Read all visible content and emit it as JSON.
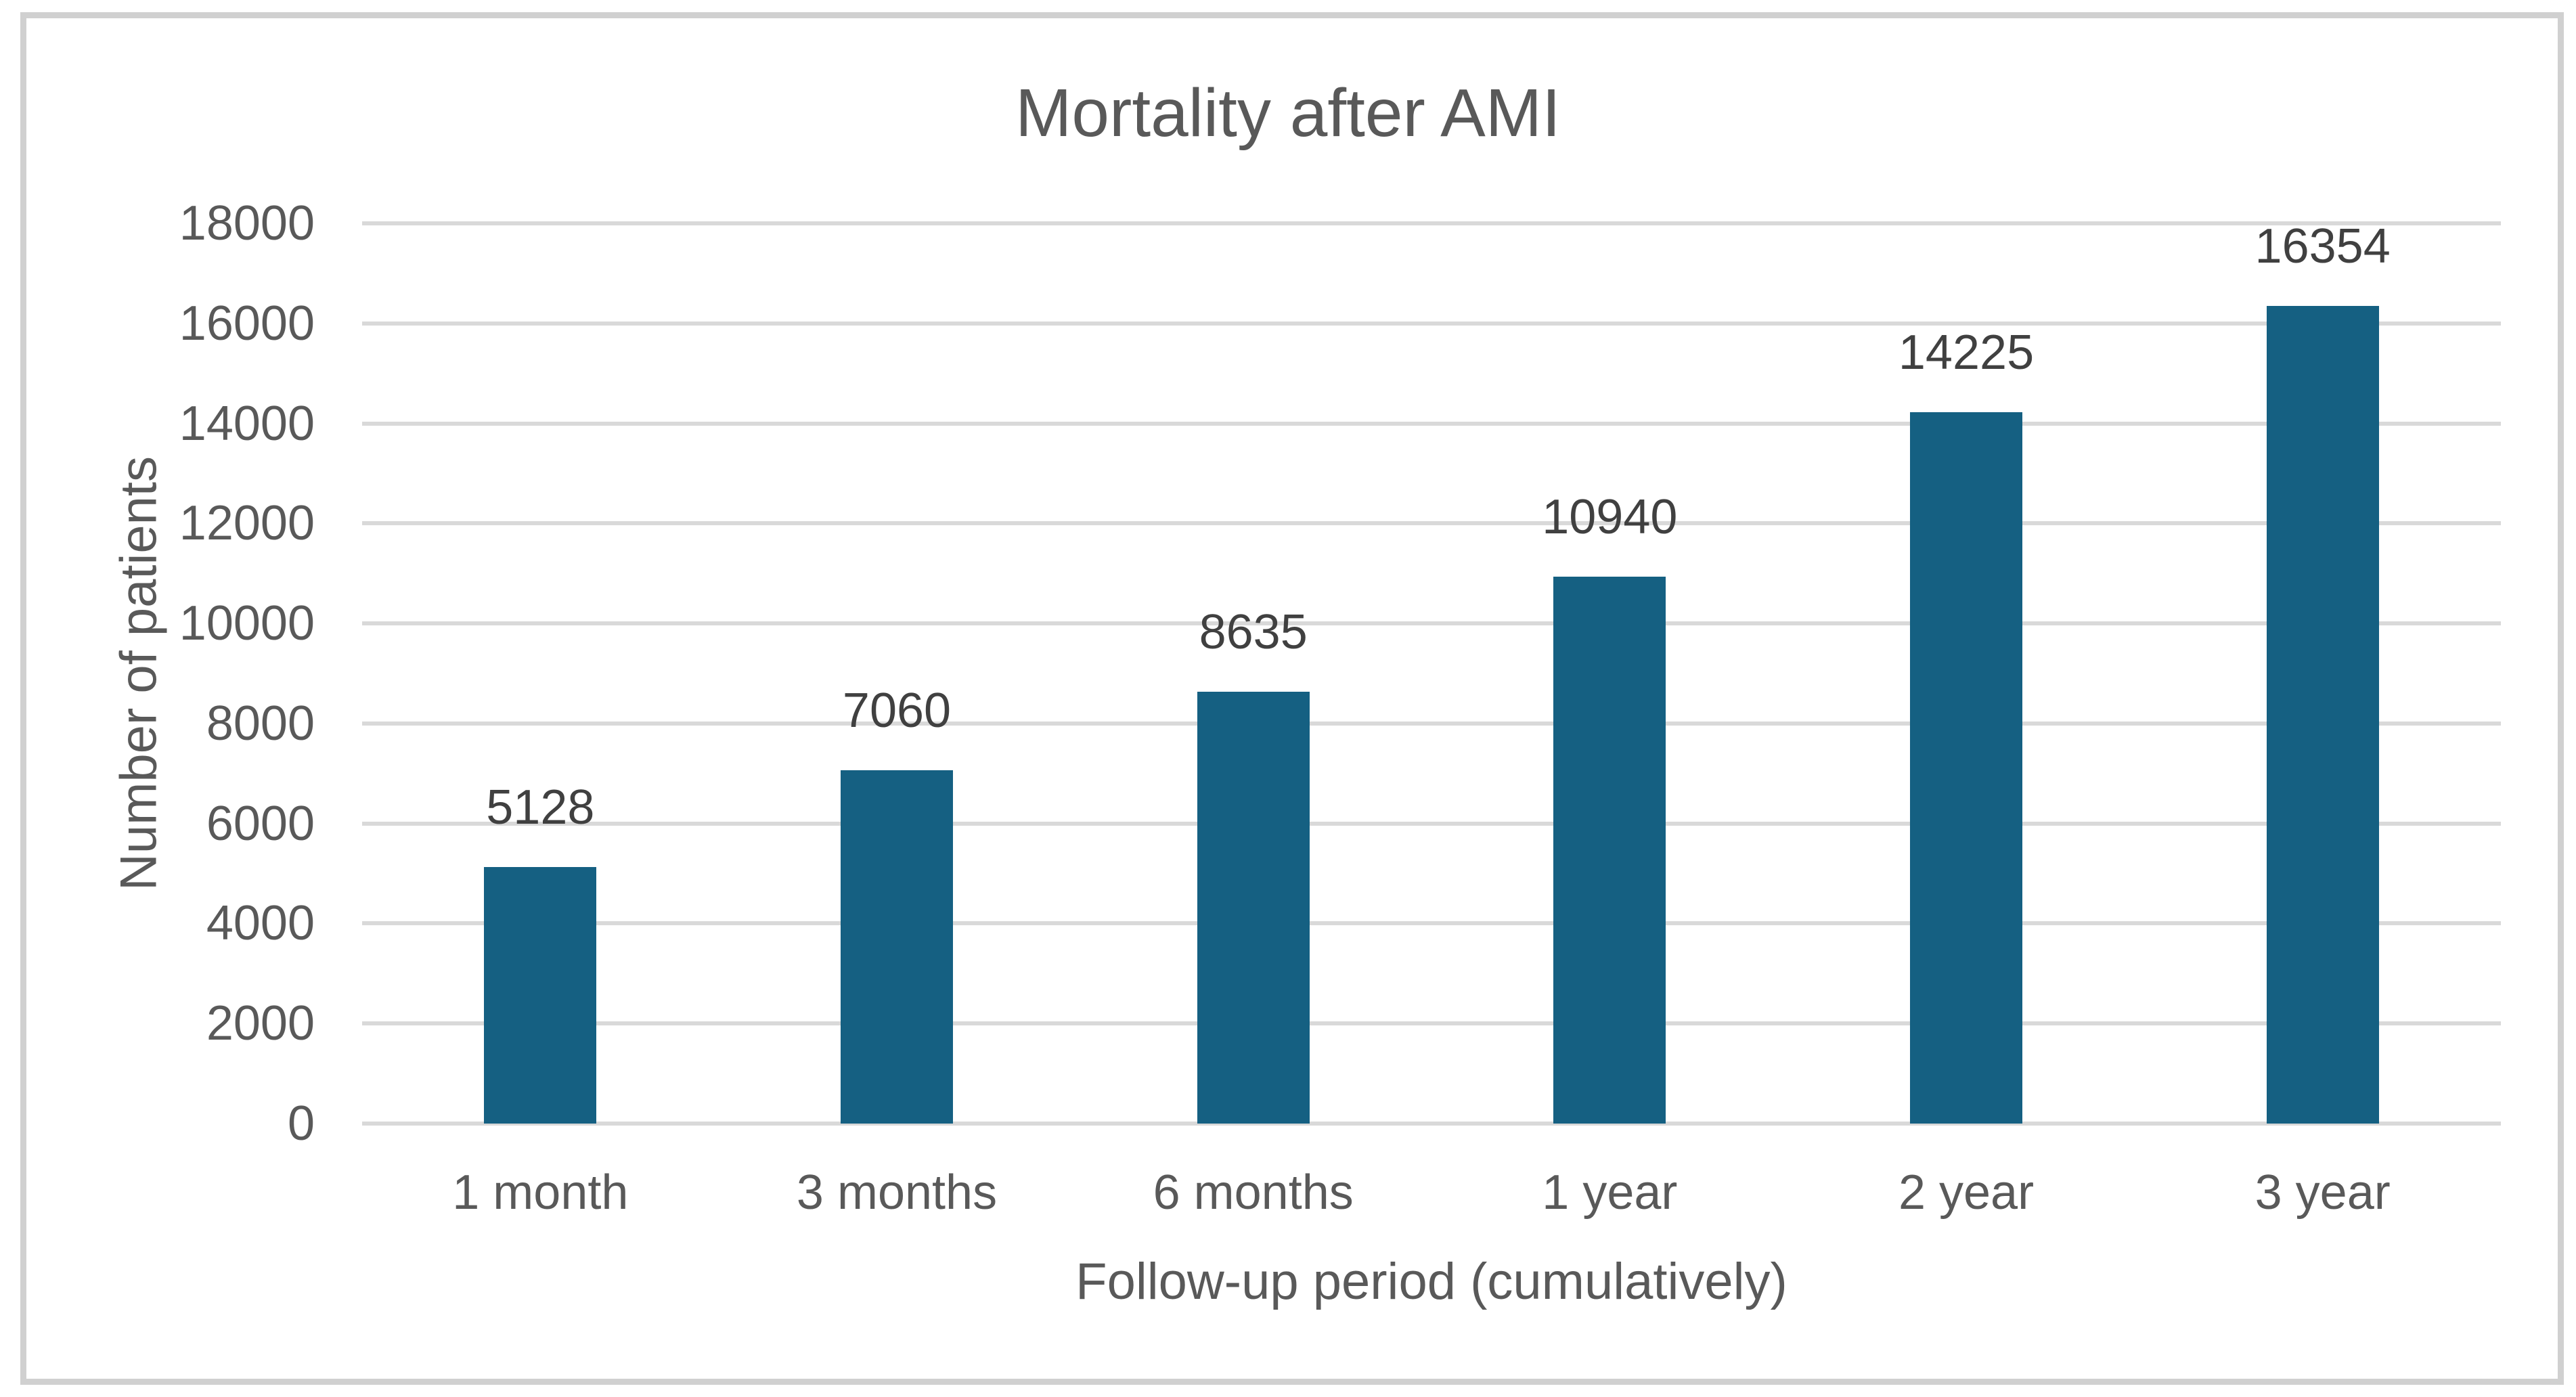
{
  "figure": {
    "background_color": "#ffffff",
    "border_color": "#d0d0d0"
  },
  "chart_data": {
    "type": "bar",
    "title": "Mortality after AMI",
    "xlabel": "Follow-up period (cumulatively)",
    "ylabel": "Number of patients",
    "categories": [
      "1 month",
      "3 months",
      "6 months",
      "1 year",
      "2 year",
      "3 year"
    ],
    "values": [
      5128,
      7060,
      8635,
      10940,
      14225,
      16354
    ],
    "data_labels": [
      "5128",
      "7060",
      "8635",
      "10940",
      "14225",
      "16354"
    ],
    "ylim": [
      0,
      18000
    ],
    "yticks": [
      0,
      2000,
      4000,
      6000,
      8000,
      10000,
      12000,
      14000,
      16000,
      18000
    ],
    "grid": true,
    "legend_position": "none",
    "bar_color": "#156082",
    "gridline_color": "#d9d9d9",
    "title_color": "#595959",
    "axis_text_color": "#595959",
    "data_label_color": "#404040"
  }
}
